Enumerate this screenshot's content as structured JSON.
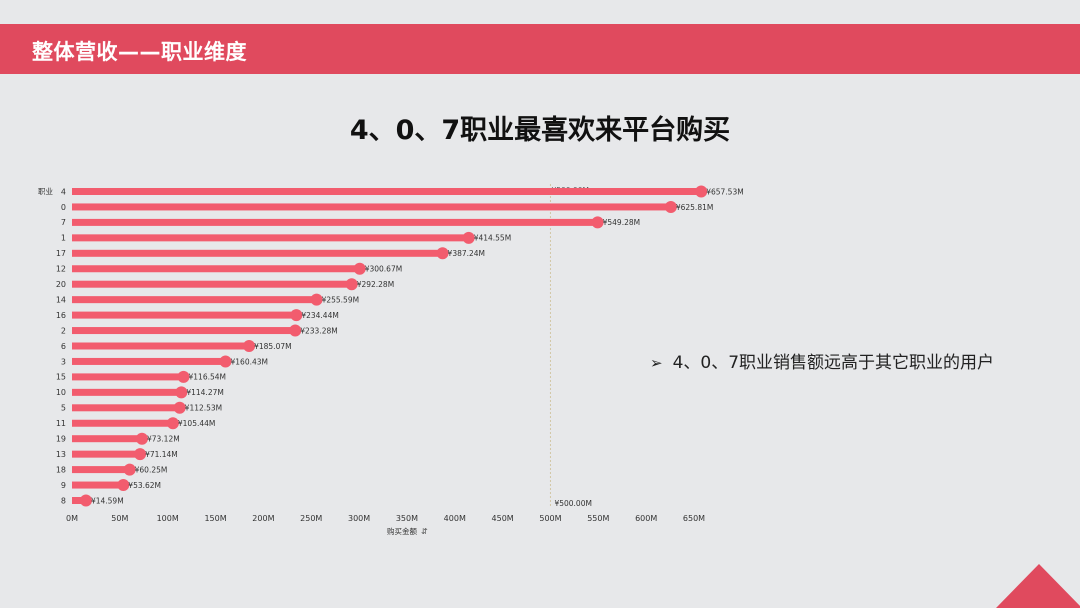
{
  "header": {
    "title": "整体营收——职业维度"
  },
  "main": {
    "title": "4、0、7职业最喜欢来平台购买"
  },
  "note": {
    "arrow": "➢",
    "text": "4、0、7职业销售额远高于其它职业的用户"
  },
  "colors": {
    "accent": "#e04a5e",
    "bar": "#f25c6e",
    "refline": "#d2c6a6"
  },
  "chart_data": {
    "type": "bar",
    "orientation": "horizontal",
    "ylabel": "职业",
    "xlabel": "购买金额",
    "categories": [
      "4",
      "0",
      "7",
      "1",
      "17",
      "12",
      "20",
      "14",
      "16",
      "2",
      "6",
      "3",
      "15",
      "10",
      "5",
      "11",
      "19",
      "13",
      "18",
      "9",
      "8"
    ],
    "values": [
      657.53,
      625.81,
      549.28,
      414.55,
      387.24,
      300.67,
      292.28,
      255.59,
      234.44,
      233.28,
      185.07,
      160.43,
      116.54,
      114.27,
      112.53,
      105.44,
      73.12,
      71.14,
      60.25,
      53.62,
      14.59
    ],
    "data_labels": [
      "¥657.53M",
      "¥625.81M",
      "¥549.28M",
      "¥414.55M",
      "¥387.24M",
      "¥300.67M",
      "¥292.28M",
      "¥255.59M",
      "¥234.44M",
      "¥233.28M",
      "¥185.07M",
      "¥160.43M",
      "¥116.54M",
      "¥114.27M",
      "¥112.53M",
      "¥105.44M",
      "¥73.12M",
      "¥71.14M",
      "¥60.25M",
      "¥53.62M",
      "¥14.59M"
    ],
    "xticks": [
      "0M",
      "50M",
      "100M",
      "150M",
      "200M",
      "250M",
      "300M",
      "350M",
      "400M",
      "450M",
      "500M",
      "550M",
      "600M",
      "650M"
    ],
    "xlim": [
      0,
      650
    ],
    "reference_line": {
      "value": 500,
      "label": "¥500.00M"
    },
    "grid": false,
    "legend": "none"
  }
}
